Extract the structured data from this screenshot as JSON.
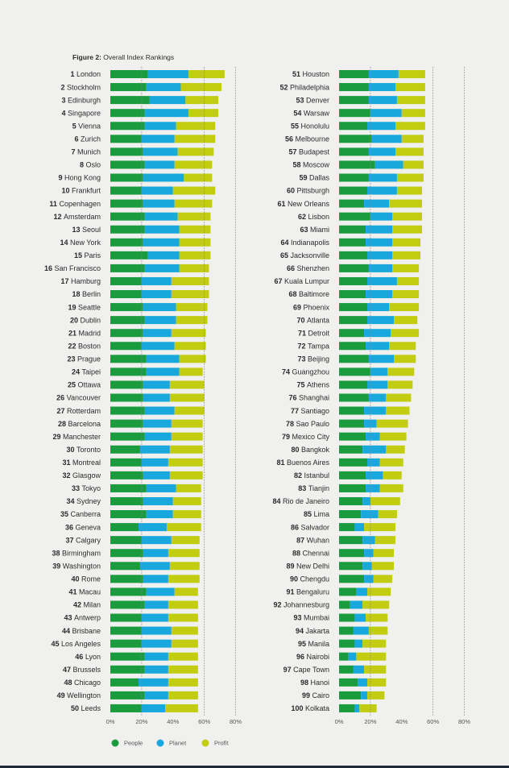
{
  "figure": {
    "label": "Figure 2:",
    "title": " Overall Index Rankings"
  },
  "colors": {
    "people": "#1a9b3e",
    "planet": "#18a8de",
    "profit": "#c2cd12",
    "text": "#2b2b2b",
    "axis_text": "#555555",
    "grid": "#8a8a8a"
  },
  "chart_data": {
    "type": "bar",
    "orientation": "horizontal",
    "stacked": true,
    "title": "Overall Index Rankings",
    "xlim": [
      0,
      80
    ],
    "x_ticks": [
      "0%",
      "20%",
      "40%",
      "60%",
      "80%"
    ],
    "x_tick_values": [
      0,
      20,
      40,
      60,
      80
    ],
    "gridlines": [
      20,
      60,
      80
    ],
    "legend": [
      "People",
      "Planet",
      "Profit"
    ],
    "legend_position": "bottom-left",
    "panels": [
      {
        "rows": [
          {
            "rank": "1",
            "city": "London",
            "people": 24,
            "planet": 26,
            "profit": 23
          },
          {
            "rank": "2",
            "city": "Stockholm",
            "people": 23,
            "planet": 22,
            "profit": 26
          },
          {
            "rank": "3",
            "city": "Edinburgh",
            "people": 25,
            "planet": 23,
            "profit": 21
          },
          {
            "rank": "4",
            "city": "Singapore",
            "people": 22,
            "planet": 28,
            "profit": 19
          },
          {
            "rank": "5",
            "city": "Vienna",
            "people": 22,
            "planet": 20,
            "profit": 25
          },
          {
            "rank": "6",
            "city": "Zurich",
            "people": 20,
            "planet": 21,
            "profit": 26
          },
          {
            "rank": "7",
            "city": "Munich",
            "people": 21,
            "planet": 22,
            "profit": 23
          },
          {
            "rank": "8",
            "city": "Oslo",
            "people": 22,
            "planet": 19,
            "profit": 24
          },
          {
            "rank": "9",
            "city": "Hong Kong",
            "people": 21,
            "planet": 26,
            "profit": 18
          },
          {
            "rank": "10",
            "city": "Frankfurt",
            "people": 20,
            "planet": 20,
            "profit": 27
          },
          {
            "rank": "11",
            "city": "Copenhagen",
            "people": 21,
            "planet": 20,
            "profit": 24
          },
          {
            "rank": "12",
            "city": "Amsterdam",
            "people": 22,
            "planet": 21,
            "profit": 21
          },
          {
            "rank": "13",
            "city": "Seoul",
            "people": 22,
            "planet": 22,
            "profit": 20
          },
          {
            "rank": "14",
            "city": "New York",
            "people": 21,
            "planet": 23,
            "profit": 20
          },
          {
            "rank": "15",
            "city": "Paris",
            "people": 24,
            "planet": 20,
            "profit": 20
          },
          {
            "rank": "16",
            "city": "San Francisco",
            "people": 22,
            "planet": 22,
            "profit": 19
          },
          {
            "rank": "17",
            "city": "Hamburg",
            "people": 20,
            "planet": 19,
            "profit": 24
          },
          {
            "rank": "18",
            "city": "Berlin",
            "people": 20,
            "planet": 19,
            "profit": 24
          },
          {
            "rank": "19",
            "city": "Seattle",
            "people": 21,
            "planet": 21,
            "profit": 20
          },
          {
            "rank": "20",
            "city": "Dublin",
            "people": 22,
            "planet": 20,
            "profit": 20
          },
          {
            "rank": "21",
            "city": "Madrid",
            "people": 21,
            "planet": 18,
            "profit": 22
          },
          {
            "rank": "22",
            "city": "Boston",
            "people": 20,
            "planet": 21,
            "profit": 20
          },
          {
            "rank": "23",
            "city": "Prague",
            "people": 23,
            "planet": 21,
            "profit": 17
          },
          {
            "rank": "24",
            "city": "Taipei",
            "people": 23,
            "planet": 21,
            "profit": 15
          },
          {
            "rank": "25",
            "city": "Ottawa",
            "people": 21,
            "planet": 17,
            "profit": 22
          },
          {
            "rank": "26",
            "city": "Vancouver",
            "people": 21,
            "planet": 17,
            "profit": 22
          },
          {
            "rank": "27",
            "city": "Rotterdam",
            "people": 22,
            "planet": 19,
            "profit": 19
          },
          {
            "rank": "28",
            "city": "Barcelona",
            "people": 21,
            "planet": 18,
            "profit": 20
          },
          {
            "rank": "29",
            "city": "Manchester",
            "people": 22,
            "planet": 17,
            "profit": 20
          },
          {
            "rank": "30",
            "city": "Toronto",
            "people": 19,
            "planet": 19,
            "profit": 21
          },
          {
            "rank": "31",
            "city": "Montreal",
            "people": 20,
            "planet": 17,
            "profit": 22
          },
          {
            "rank": "32",
            "city": "Glasgow",
            "people": 21,
            "planet": 17,
            "profit": 21
          },
          {
            "rank": "33",
            "city": "Tokyo",
            "people": 23,
            "planet": 19,
            "profit": 16
          },
          {
            "rank": "34",
            "city": "Sydney",
            "people": 21,
            "planet": 19,
            "profit": 18
          },
          {
            "rank": "35",
            "city": "Canberra",
            "people": 23,
            "planet": 17,
            "profit": 18
          },
          {
            "rank": "36",
            "city": "Geneva",
            "people": 18,
            "planet": 18,
            "profit": 22
          },
          {
            "rank": "37",
            "city": "Calgary",
            "people": 20,
            "planet": 19,
            "profit": 18
          },
          {
            "rank": "38",
            "city": "Birmingham",
            "people": 21,
            "planet": 16,
            "profit": 20
          },
          {
            "rank": "39",
            "city": "Washington",
            "people": 19,
            "planet": 19,
            "profit": 19
          },
          {
            "rank": "40",
            "city": "Rome",
            "people": 21,
            "planet": 16,
            "profit": 20
          },
          {
            "rank": "41",
            "city": "Macau",
            "people": 23,
            "planet": 18,
            "profit": 15
          },
          {
            "rank": "42",
            "city": "Milan",
            "people": 22,
            "planet": 15,
            "profit": 19
          },
          {
            "rank": "43",
            "city": "Antwerp",
            "people": 20,
            "planet": 17,
            "profit": 19
          },
          {
            "rank": "44",
            "city": "Brisbane",
            "people": 20,
            "planet": 19,
            "profit": 17
          },
          {
            "rank": "45",
            "city": "Los Angeles",
            "people": 20,
            "planet": 19,
            "profit": 17
          },
          {
            "rank": "46",
            "city": "Lyon",
            "people": 22,
            "planet": 15,
            "profit": 19
          },
          {
            "rank": "47",
            "city": "Brussels",
            "people": 22,
            "planet": 15,
            "profit": 19
          },
          {
            "rank": "48",
            "city": "Chicago",
            "people": 18,
            "planet": 19,
            "profit": 19
          },
          {
            "rank": "49",
            "city": "Wellington",
            "people": 22,
            "planet": 15,
            "profit": 19
          },
          {
            "rank": "50",
            "city": "Leeds",
            "people": 20,
            "planet": 15,
            "profit": 21
          }
        ]
      },
      {
        "rows": [
          {
            "rank": "51",
            "city": "Houston",
            "people": 19,
            "planet": 19,
            "profit": 17
          },
          {
            "rank": "52",
            "city": "Philadelphia",
            "people": 19,
            "planet": 17,
            "profit": 19
          },
          {
            "rank": "53",
            "city": "Denver",
            "people": 19,
            "planet": 18,
            "profit": 18
          },
          {
            "rank": "54",
            "city": "Warsaw",
            "people": 20,
            "planet": 20,
            "profit": 15
          },
          {
            "rank": "55",
            "city": "Honolulu",
            "people": 18,
            "planet": 18,
            "profit": 19
          },
          {
            "rank": "56",
            "city": "Melbourne",
            "people": 21,
            "planet": 19,
            "profit": 14
          },
          {
            "rank": "57",
            "city": "Budapest",
            "people": 19,
            "planet": 17,
            "profit": 18
          },
          {
            "rank": "58",
            "city": "Moscow",
            "people": 23,
            "planet": 18,
            "profit": 13
          },
          {
            "rank": "59",
            "city": "Dallas",
            "people": 19,
            "planet": 18,
            "profit": 17
          },
          {
            "rank": "60",
            "city": "Pittsburgh",
            "people": 18,
            "planet": 19,
            "profit": 16
          },
          {
            "rank": "61",
            "city": "New Orleans",
            "people": 16,
            "planet": 16,
            "profit": 21
          },
          {
            "rank": "62",
            "city": "Lisbon",
            "people": 20,
            "planet": 14,
            "profit": 19
          },
          {
            "rank": "63",
            "city": "Miami",
            "people": 17,
            "planet": 17,
            "profit": 19
          },
          {
            "rank": "64",
            "city": "Indianapolis",
            "people": 17,
            "planet": 17,
            "profit": 18
          },
          {
            "rank": "65",
            "city": "Jacksonville",
            "people": 18,
            "planet": 16,
            "profit": 18
          },
          {
            "rank": "66",
            "city": "Shenzhen",
            "people": 19,
            "planet": 15,
            "profit": 17
          },
          {
            "rank": "67",
            "city": "Kuala Lumpur",
            "people": 18,
            "planet": 19,
            "profit": 14
          },
          {
            "rank": "68",
            "city": "Baltimore",
            "people": 17,
            "planet": 17,
            "profit": 17
          },
          {
            "rank": "69",
            "city": "Phoenix",
            "people": 18,
            "planet": 14,
            "profit": 19
          },
          {
            "rank": "70",
            "city": "Atlanta",
            "people": 18,
            "planet": 17,
            "profit": 15
          },
          {
            "rank": "71",
            "city": "Detroit",
            "people": 16,
            "planet": 17,
            "profit": 18
          },
          {
            "rank": "72",
            "city": "Tampa",
            "people": 17,
            "planet": 15,
            "profit": 17
          },
          {
            "rank": "73",
            "city": "Beijing",
            "people": 19,
            "planet": 16,
            "profit": 14
          },
          {
            "rank": "74",
            "city": "Guangzhou",
            "people": 20,
            "planet": 11,
            "profit": 17
          },
          {
            "rank": "75",
            "city": "Athens",
            "people": 18,
            "planet": 13,
            "profit": 16
          },
          {
            "rank": "76",
            "city": "Shanghai",
            "people": 19,
            "planet": 11,
            "profit": 16
          },
          {
            "rank": "77",
            "city": "Santiago",
            "people": 16,
            "planet": 14,
            "profit": 15
          },
          {
            "rank": "78",
            "city": "Sao Paulo",
            "people": 16,
            "planet": 8,
            "profit": 20
          },
          {
            "rank": "79",
            "city": "Mexico City",
            "people": 17,
            "planet": 9,
            "profit": 17
          },
          {
            "rank": "80",
            "city": "Bangkok",
            "people": 15,
            "planet": 15,
            "profit": 12
          },
          {
            "rank": "81",
            "city": "Buenos Aires",
            "people": 18,
            "planet": 8,
            "profit": 15
          },
          {
            "rank": "82",
            "city": "Istanbul",
            "people": 17,
            "planet": 11,
            "profit": 12
          },
          {
            "rank": "83",
            "city": "Tianjin",
            "people": 17,
            "planet": 9,
            "profit": 15
          },
          {
            "rank": "84",
            "city": "Rio de Janeiro",
            "people": 15,
            "planet": 5,
            "profit": 19
          },
          {
            "rank": "85",
            "city": "Lima",
            "people": 14,
            "planet": 11,
            "profit": 12
          },
          {
            "rank": "86",
            "city": "Salvador",
            "people": 10,
            "planet": 6,
            "profit": 20
          },
          {
            "rank": "87",
            "city": "Wuhan",
            "people": 15,
            "planet": 8,
            "profit": 13
          },
          {
            "rank": "88",
            "city": "Chennai",
            "people": 16,
            "planet": 6,
            "profit": 13
          },
          {
            "rank": "89",
            "city": "New Delhi",
            "people": 15,
            "planet": 6,
            "profit": 14
          },
          {
            "rank": "90",
            "city": "Chengdu",
            "people": 16,
            "planet": 6,
            "profit": 12
          },
          {
            "rank": "91",
            "city": "Bengaluru",
            "people": 11,
            "planet": 7,
            "profit": 15
          },
          {
            "rank": "92",
            "city": "Johannesburg",
            "people": 7,
            "planet": 8,
            "profit": 17
          },
          {
            "rank": "93",
            "city": "Mumbai",
            "people": 10,
            "planet": 7,
            "profit": 14
          },
          {
            "rank": "94",
            "city": "Jakarta",
            "people": 9,
            "planet": 10,
            "profit": 12
          },
          {
            "rank": "95",
            "city": "Manila",
            "people": 10,
            "planet": 5,
            "profit": 15
          },
          {
            "rank": "96",
            "city": "Nairobi",
            "people": 6,
            "planet": 5,
            "profit": 19
          },
          {
            "rank": "97",
            "city": "Cape Town",
            "people": 9,
            "planet": 7,
            "profit": 14
          },
          {
            "rank": "98",
            "city": "Hanoi",
            "people": 12,
            "planet": 6,
            "profit": 12
          },
          {
            "rank": "99",
            "city": "Cairo",
            "people": 14,
            "planet": 4,
            "profit": 11
          },
          {
            "rank": "100",
            "city": "Kolkata",
            "people": 10,
            "planet": 3,
            "profit": 11
          }
        ]
      }
    ]
  }
}
